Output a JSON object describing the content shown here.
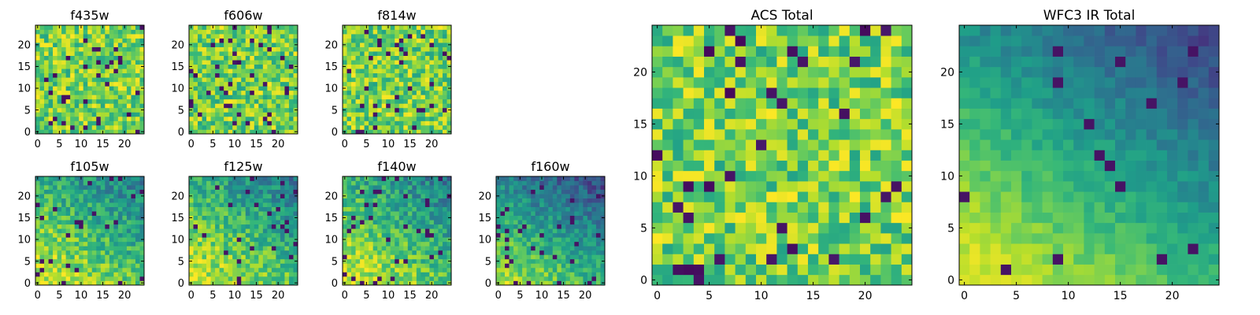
{
  "chart_data": [
    {
      "type": "heatmap",
      "title": "f435w",
      "rows": 25,
      "cols": 25,
      "colormap": "viridis",
      "pattern": "noise",
      "seed": 11,
      "x_ticks": [
        "0",
        "5",
        "10",
        "15",
        "20"
      ],
      "y_ticks": [
        "0",
        "5",
        "10",
        "15",
        "20"
      ],
      "xlim": [
        -0.5,
        24.5
      ],
      "ylim": [
        -0.5,
        24.5
      ]
    },
    {
      "type": "heatmap",
      "title": "f606w",
      "rows": 25,
      "cols": 25,
      "colormap": "viridis",
      "pattern": "noise",
      "seed": 23,
      "x_ticks": [
        "0",
        "5",
        "10",
        "15",
        "20"
      ],
      "y_ticks": [
        "0",
        "5",
        "10",
        "15",
        "20"
      ],
      "xlim": [
        -0.5,
        24.5
      ],
      "ylim": [
        -0.5,
        24.5
      ]
    },
    {
      "type": "heatmap",
      "title": "f814w",
      "rows": 25,
      "cols": 25,
      "colormap": "viridis",
      "pattern": "noise",
      "seed": 37,
      "x_ticks": [
        "0",
        "5",
        "10",
        "15",
        "20"
      ],
      "y_ticks": [
        "0",
        "5",
        "10",
        "15",
        "20"
      ],
      "xlim": [
        -0.5,
        24.5
      ],
      "ylim": [
        -0.5,
        24.5
      ]
    },
    {
      "type": "heatmap",
      "title": "f105w",
      "rows": 25,
      "cols": 25,
      "colormap": "viridis",
      "pattern": "gradient",
      "seed": 41,
      "x_ticks": [
        "0",
        "5",
        "10",
        "15",
        "20"
      ],
      "y_ticks": [
        "0",
        "5",
        "10",
        "15",
        "20"
      ],
      "xlim": [
        -0.5,
        24.5
      ],
      "ylim": [
        -0.5,
        24.5
      ]
    },
    {
      "type": "heatmap",
      "title": "f125w",
      "rows": 25,
      "cols": 25,
      "colormap": "viridis",
      "pattern": "gradient",
      "seed": 53,
      "x_ticks": [
        "0",
        "5",
        "10",
        "15",
        "20"
      ],
      "y_ticks": [
        "0",
        "5",
        "10",
        "15",
        "20"
      ],
      "xlim": [
        -0.5,
        24.5
      ],
      "ylim": [
        -0.5,
        24.5
      ]
    },
    {
      "type": "heatmap",
      "title": "f140w",
      "rows": 25,
      "cols": 25,
      "colormap": "viridis",
      "pattern": "gradient",
      "seed": 67,
      "x_ticks": [
        "0",
        "5",
        "10",
        "15",
        "20"
      ],
      "y_ticks": [
        "0",
        "5",
        "10",
        "15",
        "20"
      ],
      "xlim": [
        -0.5,
        24.5
      ],
      "ylim": [
        -0.5,
        24.5
      ]
    },
    {
      "type": "heatmap",
      "title": "f160w",
      "rows": 25,
      "cols": 25,
      "colormap": "viridis",
      "pattern": "gradient-dark",
      "seed": 79,
      "x_ticks": [
        "0",
        "5",
        "10",
        "15",
        "20"
      ],
      "y_ticks": [
        "0",
        "5",
        "10",
        "15",
        "20"
      ],
      "xlim": [
        -0.5,
        24.5
      ],
      "ylim": [
        -0.5,
        24.5
      ]
    },
    {
      "type": "heatmap",
      "title": "ACS Total",
      "rows": 25,
      "cols": 25,
      "colormap": "viridis",
      "pattern": "noise",
      "seed": 97,
      "x_ticks": [
        "0",
        "5",
        "10",
        "15",
        "20"
      ],
      "y_ticks": [
        "0",
        "5",
        "10",
        "15",
        "20"
      ],
      "xlim": [
        -0.5,
        24.5
      ],
      "ylim": [
        -0.5,
        24.5
      ]
    },
    {
      "type": "heatmap",
      "title": "WFC3 IR Total",
      "rows": 25,
      "cols": 25,
      "colormap": "viridis",
      "pattern": "smooth",
      "seed": 131,
      "x_ticks": [
        "0",
        "5",
        "10",
        "15",
        "20"
      ],
      "y_ticks": [
        "0",
        "5",
        "10",
        "15",
        "20"
      ],
      "xlim": [
        -0.5,
        24.5
      ],
      "ylim": [
        -0.5,
        24.5
      ]
    }
  ]
}
